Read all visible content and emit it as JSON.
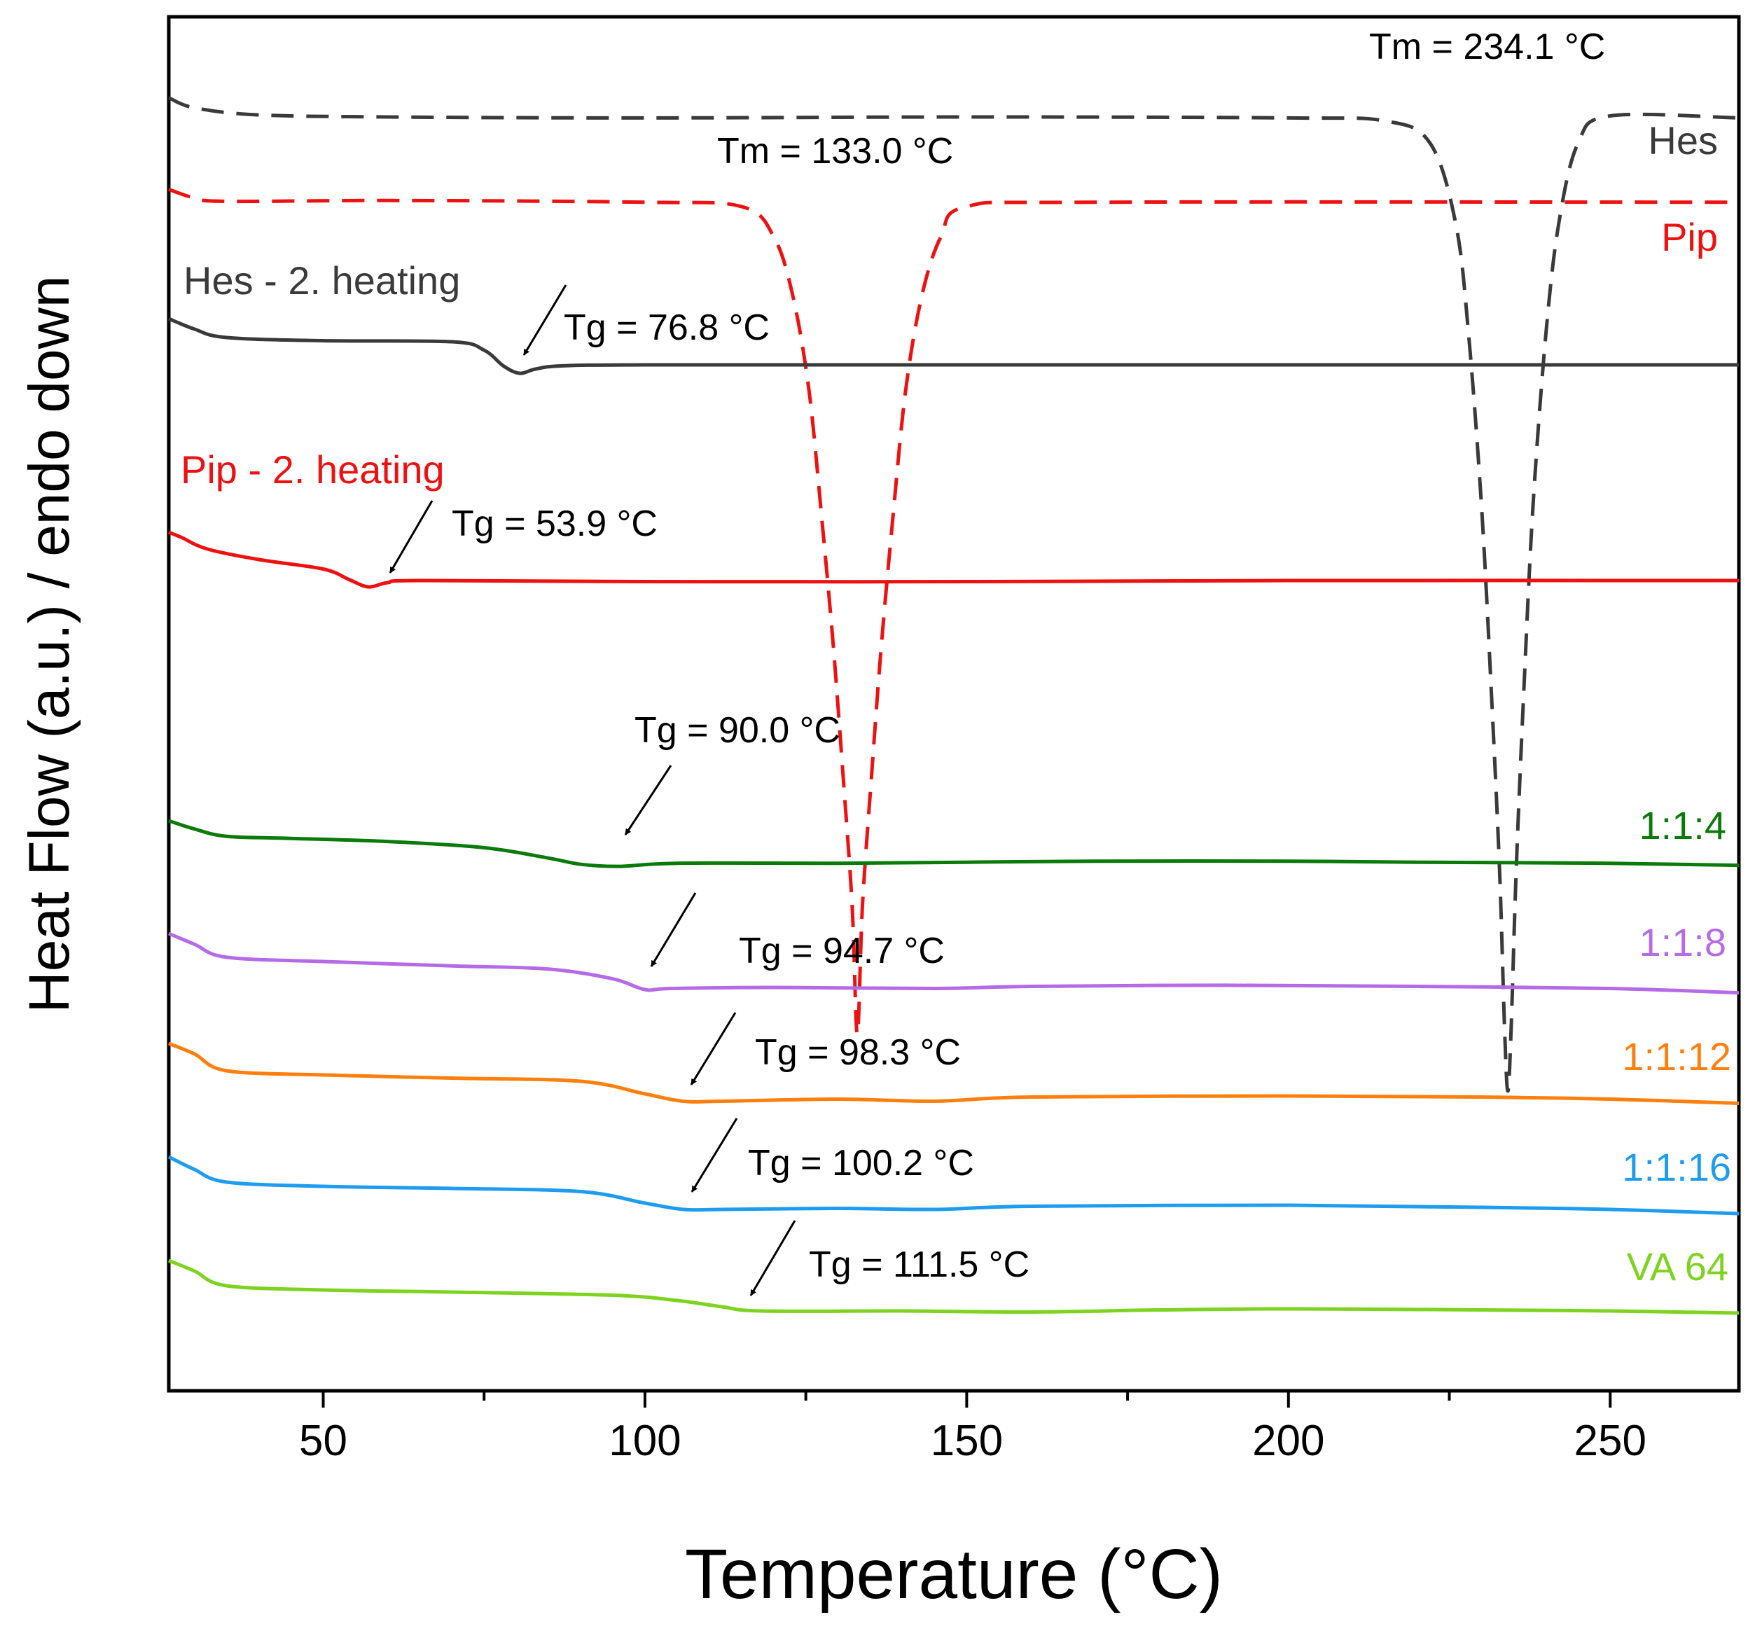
{
  "chart_data": {
    "type": "line",
    "title": "",
    "xlabel": "Temperature (°C)",
    "ylabel": "Heat Flow (a.u.) / endo down",
    "xlim": [
      26,
      270
    ],
    "x_ticks": [
      50,
      100,
      150,
      200,
      250
    ],
    "x_minor_ticks": [
      75,
      125,
      175,
      225
    ],
    "y_ticks_shown": false,
    "grid": false,
    "legend": "inline labels at right",
    "series": [
      {
        "name": "Hes",
        "color": "#3a3a3a",
        "dash": "dashed",
        "label": "Hes",
        "points": [
          [
            26,
            -1.5
          ],
          [
            30,
            -2.5
          ],
          [
            40,
            -3.2
          ],
          [
            60,
            -3.4
          ],
          [
            100,
            -3.5
          ],
          [
            150,
            -3.4
          ],
          [
            200,
            -3.5
          ],
          [
            215,
            -3.8
          ],
          [
            222,
            -6
          ],
          [
            226,
            -14
          ],
          [
            228,
            -25
          ],
          [
            230,
            -42
          ],
          [
            231.5,
            -60
          ],
          [
            232.8,
            -78
          ],
          [
            233.6,
            -94
          ],
          [
            234.1,
            -100
          ],
          [
            234.6,
            -94
          ],
          [
            235.4,
            -78
          ],
          [
            236.6,
            -60
          ],
          [
            238,
            -42
          ],
          [
            240,
            -25
          ],
          [
            242,
            -14
          ],
          [
            245,
            -6
          ],
          [
            250,
            -3.3
          ],
          [
            270,
            -3.5
          ]
        ]
      },
      {
        "name": "Pip",
        "color": "#ee1111",
        "dash": "dashed",
        "label": "Pip",
        "points": [
          [
            26,
            -1.5
          ],
          [
            30,
            -2.5
          ],
          [
            35,
            -2.9
          ],
          [
            60,
            -2.8
          ],
          [
            100,
            -3.0
          ],
          [
            115,
            -3.5
          ],
          [
            120,
            -7
          ],
          [
            123,
            -14
          ],
          [
            125.5,
            -25
          ],
          [
            127.5,
            -40
          ],
          [
            129.3,
            -55
          ],
          [
            130.8,
            -70
          ],
          [
            132.2,
            -85
          ],
          [
            133.0,
            -100
          ],
          [
            133.8,
            -85
          ],
          [
            135.2,
            -70
          ],
          [
            136.7,
            -55
          ],
          [
            138.5,
            -40
          ],
          [
            140.5,
            -25
          ],
          [
            143,
            -14
          ],
          [
            146,
            -7
          ],
          [
            150,
            -3.5
          ],
          [
            170,
            -3.0
          ],
          [
            270,
            -3.0
          ]
        ]
      },
      {
        "name": "Hes - 2. heating",
        "color": "#3a3a3a",
        "dash": "solid",
        "label": "Hes - 2. heating",
        "points": [
          [
            26,
            0
          ],
          [
            30,
            -10
          ],
          [
            35,
            -18
          ],
          [
            50,
            -21
          ],
          [
            70,
            -22
          ],
          [
            75,
            -30
          ],
          [
            78,
            -45
          ],
          [
            80.5,
            -52
          ],
          [
            83,
            -48
          ],
          [
            87,
            -45
          ],
          [
            100,
            -44
          ],
          [
            150,
            -44
          ],
          [
            200,
            -44
          ],
          [
            270,
            -44
          ]
        ]
      },
      {
        "name": "Pip - 2. heating",
        "color": "#ee1111",
        "dash": "solid",
        "label": "Pip - 2. heating",
        "points": [
          [
            26,
            0
          ],
          [
            28,
            -5
          ],
          [
            32,
            -16
          ],
          [
            40,
            -26
          ],
          [
            50,
            -35
          ],
          [
            54,
            -45
          ],
          [
            57,
            -52
          ],
          [
            60,
            -48
          ],
          [
            65,
            -46
          ],
          [
            100,
            -47
          ],
          [
            150,
            -47
          ],
          [
            200,
            -46
          ],
          [
            270,
            -46
          ]
        ]
      },
      {
        "name": "1:1:4",
        "color": "#0a7a0a",
        "dash": "solid",
        "label": "1:1:4",
        "points": [
          [
            26,
            0
          ],
          [
            30,
            -8
          ],
          [
            35,
            -15
          ],
          [
            45,
            -17
          ],
          [
            60,
            -20
          ],
          [
            75,
            -26
          ],
          [
            85,
            -36
          ],
          [
            90,
            -42
          ],
          [
            96,
            -44
          ],
          [
            105,
            -41
          ],
          [
            130,
            -41
          ],
          [
            150,
            -40
          ],
          [
            170,
            -39
          ],
          [
            200,
            -39
          ],
          [
            220,
            -40
          ],
          [
            250,
            -41
          ],
          [
            270,
            -43
          ]
        ]
      },
      {
        "name": "1:1:8",
        "color": "#b56be6",
        "dash": "solid",
        "label": "1:1:8",
        "points": [
          [
            26,
            0
          ],
          [
            30,
            -10
          ],
          [
            35,
            -22
          ],
          [
            50,
            -26
          ],
          [
            70,
            -30
          ],
          [
            85,
            -33
          ],
          [
            95,
            -42
          ],
          [
            100,
            -52
          ],
          [
            104,
            -51
          ],
          [
            120,
            -50
          ],
          [
            145,
            -51
          ],
          [
            160,
            -49
          ],
          [
            190,
            -48
          ],
          [
            220,
            -49
          ],
          [
            250,
            -51
          ],
          [
            270,
            -55
          ]
        ]
      },
      {
        "name": "1:1:12",
        "color": "#ff7f0e",
        "dash": "solid",
        "label": "1:1:12",
        "points": [
          [
            26,
            0
          ],
          [
            30,
            -10
          ],
          [
            35,
            -26
          ],
          [
            50,
            -30
          ],
          [
            70,
            -33
          ],
          [
            90,
            -36
          ],
          [
            100,
            -48
          ],
          [
            106,
            -55
          ],
          [
            112,
            -55
          ],
          [
            130,
            -53
          ],
          [
            145,
            -55
          ],
          [
            160,
            -51
          ],
          [
            200,
            -50
          ],
          [
            230,
            -51
          ],
          [
            250,
            -53
          ],
          [
            270,
            -57
          ]
        ]
      },
      {
        "name": "1:1:16",
        "color": "#1e9cf0",
        "dash": "solid",
        "label": "1:1:16",
        "points": [
          [
            26,
            0
          ],
          [
            30,
            -12
          ],
          [
            35,
            -24
          ],
          [
            50,
            -28
          ],
          [
            70,
            -30
          ],
          [
            90,
            -33
          ],
          [
            100,
            -44
          ],
          [
            106,
            -50
          ],
          [
            112,
            -50
          ],
          [
            130,
            -49
          ],
          [
            145,
            -50
          ],
          [
            160,
            -47
          ],
          [
            200,
            -46
          ],
          [
            230,
            -48
          ],
          [
            250,
            -50
          ],
          [
            270,
            -54
          ]
        ]
      },
      {
        "name": "VA 64",
        "color": "#7ed320",
        "dash": "solid",
        "label": "VA 64",
        "points": [
          [
            26,
            0
          ],
          [
            30,
            -10
          ],
          [
            35,
            -24
          ],
          [
            50,
            -28
          ],
          [
            70,
            -30
          ],
          [
            95,
            -33
          ],
          [
            105,
            -38
          ],
          [
            112,
            -44
          ],
          [
            118,
            -48
          ],
          [
            140,
            -48
          ],
          [
            160,
            -49
          ],
          [
            180,
            -47
          ],
          [
            200,
            -46
          ],
          [
            230,
            -47
          ],
          [
            250,
            -48
          ],
          [
            270,
            -50
          ]
        ]
      }
    ],
    "annotations": [
      {
        "text": "Tm = 234.1 °C",
        "series": "Hes"
      },
      {
        "text": "Tm = 133.0 °C",
        "series": "Pip"
      },
      {
        "text": "Tg = 76.8 °C",
        "series": "Hes - 2. heating"
      },
      {
        "text": "Tg = 53.9 °C",
        "series": "Pip - 2. heating"
      },
      {
        "text": "Tg = 90.0 °C",
        "series": "1:1:4"
      },
      {
        "text": "Tg = 94.7 °C",
        "series": "1:1:8"
      },
      {
        "text": "Tg = 98.3 °C",
        "series": "1:1:12"
      },
      {
        "text": "Tg = 100.2 °C",
        "series": "1:1:16"
      },
      {
        "text": "Tg = 111.5 °C",
        "series": "VA 64"
      }
    ]
  }
}
